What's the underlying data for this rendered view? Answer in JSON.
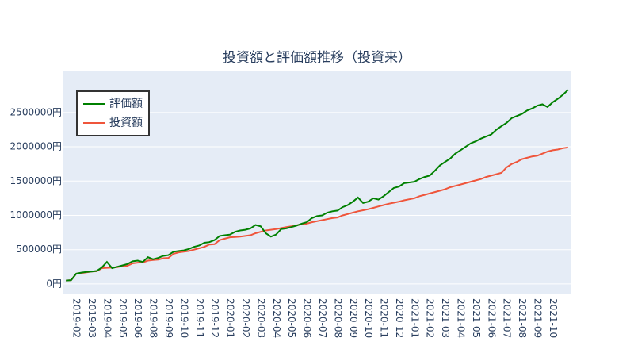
{
  "chart_data": {
    "type": "line",
    "title": "投資額と評価額推移（投資来）",
    "categories": [
      null,
      null,
      "2019-02",
      null,
      null,
      "2019-03",
      null,
      null,
      "2019-04",
      null,
      null,
      "2019-05",
      null,
      null,
      "2019-06",
      null,
      null,
      "2019-08",
      null,
      null,
      "2019-09",
      null,
      null,
      "2019-10",
      null,
      null,
      "2019-11",
      null,
      null,
      "2019-12",
      null,
      null,
      "2020-01",
      null,
      null,
      "2020-02",
      null,
      null,
      "2020-03",
      null,
      null,
      "2020-04",
      null,
      null,
      "2020-05",
      null,
      null,
      "2020-06",
      null,
      null,
      "2020-07",
      null,
      null,
      "2020-08",
      null,
      null,
      "2020-09",
      null,
      null,
      "2020-10",
      null,
      null,
      "2020-11",
      null,
      null,
      "2020-12",
      null,
      null,
      "2021-01",
      null,
      null,
      "2021-02",
      null,
      null,
      "2021-03",
      null,
      null,
      "2021-04",
      null,
      null,
      "2021-05",
      null,
      null,
      "2021-06",
      null,
      null,
      "2021-07",
      null,
      null,
      "2021-08",
      null,
      null,
      "2021-09",
      null,
      null,
      "2021-10",
      null,
      null,
      null
    ],
    "series": [
      {
        "name": "評価額",
        "color": "#008000",
        "values": [
          50000,
          55000,
          150000,
          165000,
          175000,
          180000,
          190000,
          240000,
          320000,
          230000,
          250000,
          270000,
          290000,
          330000,
          340000,
          320000,
          390000,
          360000,
          380000,
          410000,
          420000,
          470000,
          480000,
          490000,
          510000,
          540000,
          560000,
          600000,
          610000,
          640000,
          700000,
          710000,
          720000,
          760000,
          780000,
          790000,
          810000,
          860000,
          840000,
          740000,
          690000,
          720000,
          800000,
          810000,
          830000,
          850000,
          880000,
          900000,
          960000,
          990000,
          1000000,
          1040000,
          1060000,
          1070000,
          1120000,
          1150000,
          1200000,
          1260000,
          1180000,
          1200000,
          1250000,
          1230000,
          1280000,
          1340000,
          1400000,
          1420000,
          1470000,
          1480000,
          1490000,
          1530000,
          1560000,
          1580000,
          1650000,
          1730000,
          1780000,
          1830000,
          1900000,
          1950000,
          2000000,
          2050000,
          2080000,
          2120000,
          2150000,
          2180000,
          2250000,
          2300000,
          2350000,
          2420000,
          2450000,
          2480000,
          2530000,
          2560000,
          2600000,
          2620000,
          2580000,
          2650000,
          2700000,
          2760000,
          2830000
        ]
      },
      {
        "name": "投資額",
        "color": "#EF553B",
        "values": [
          50000,
          55000,
          150000,
          160000,
          170000,
          180000,
          185000,
          230000,
          235000,
          240000,
          245000,
          260000,
          265000,
          300000,
          310000,
          315000,
          340000,
          350000,
          355000,
          375000,
          380000,
          440000,
          460000,
          470000,
          480000,
          500000,
          520000,
          540000,
          575000,
          580000,
          640000,
          660000,
          680000,
          685000,
          690000,
          700000,
          710000,
          740000,
          760000,
          780000,
          790000,
          800000,
          815000,
          830000,
          840000,
          855000,
          870000,
          880000,
          900000,
          915000,
          930000,
          945000,
          960000,
          970000,
          1000000,
          1020000,
          1040000,
          1060000,
          1075000,
          1090000,
          1110000,
          1130000,
          1150000,
          1170000,
          1185000,
          1200000,
          1220000,
          1235000,
          1250000,
          1280000,
          1300000,
          1320000,
          1340000,
          1360000,
          1380000,
          1410000,
          1430000,
          1450000,
          1470000,
          1490000,
          1510000,
          1530000,
          1560000,
          1580000,
          1600000,
          1620000,
          1700000,
          1750000,
          1780000,
          1820000,
          1840000,
          1860000,
          1870000,
          1900000,
          1930000,
          1950000,
          1960000,
          1980000,
          1990000
        ]
      }
    ],
    "ylim": [
      -140000,
      3100000
    ],
    "yticks": [
      {
        "value": 0,
        "label": "0円"
      },
      {
        "value": 500000,
        "label": "500000円"
      },
      {
        "value": 1000000,
        "label": "1000000円"
      },
      {
        "value": 1500000,
        "label": "1500000円"
      },
      {
        "value": 2000000,
        "label": "2000000円"
      },
      {
        "value": 2500000,
        "label": "2500000円"
      }
    ],
    "grid": true,
    "legend": "top-left"
  }
}
